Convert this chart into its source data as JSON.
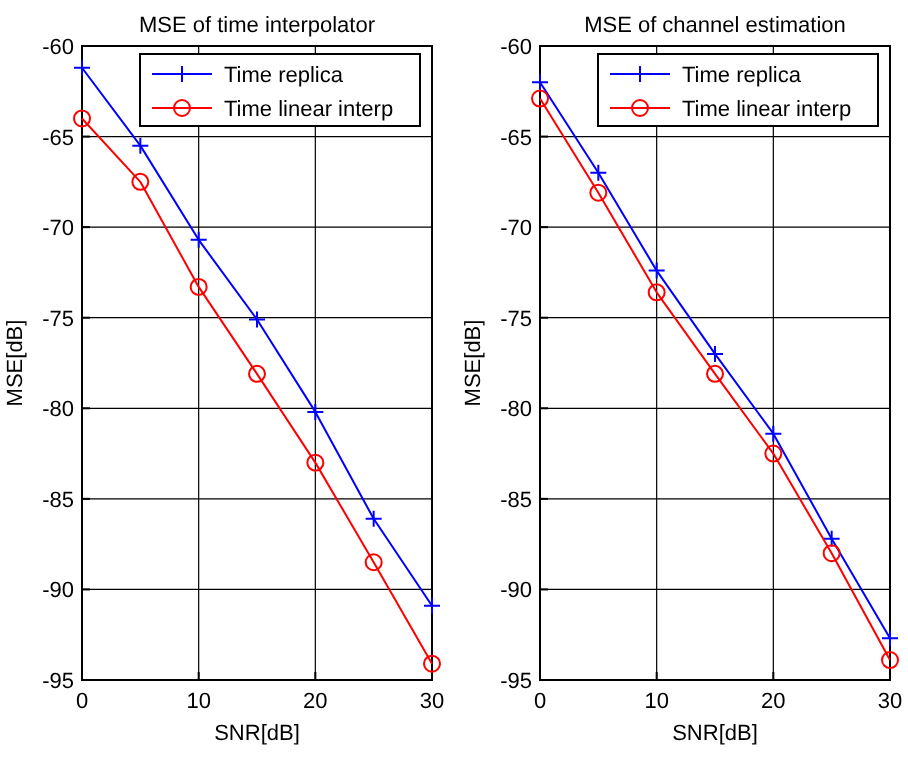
{
  "chart_data": [
    {
      "type": "line",
      "title": "MSE of time interpolator",
      "xlabel": "SNR[dB]",
      "ylabel": "MSE[dB]",
      "x": [
        0,
        5,
        10,
        15,
        20,
        25,
        30
      ],
      "xlim": [
        0,
        30
      ],
      "xticks": [
        0,
        10,
        20,
        30
      ],
      "ylim": [
        -95,
        -60
      ],
      "yticks": [
        -95,
        -90,
        -85,
        -80,
        -75,
        -70,
        -65,
        -60
      ],
      "grid": true,
      "legend": "top right",
      "series": [
        {
          "name": "Time replica",
          "color": "#0000ff",
          "marker": "cross",
          "values": [
            -61.2,
            -65.5,
            -70.7,
            -75.1,
            -80.2,
            -86.1,
            -90.9
          ]
        },
        {
          "name": "Time linear interp",
          "color": "#ff0000",
          "marker": "circle",
          "values": [
            -64,
            -67.5,
            -73.3,
            -78.1,
            -83,
            -88.5,
            -94.1
          ]
        }
      ]
    },
    {
      "type": "line",
      "title": "MSE of channel estimation",
      "xlabel": "SNR[dB]",
      "ylabel": "MSE[dB]",
      "x": [
        0,
        5,
        10,
        15,
        20,
        25,
        30
      ],
      "xlim": [
        0,
        30
      ],
      "xticks": [
        0,
        10,
        20,
        30
      ],
      "ylim": [
        -95,
        -60
      ],
      "yticks": [
        -95,
        -90,
        -85,
        -80,
        -75,
        -70,
        -65,
        -60
      ],
      "grid": true,
      "legend": "top right",
      "series": [
        {
          "name": "Time replica",
          "color": "#0000ff",
          "marker": "cross",
          "values": [
            -62,
            -67,
            -72.4,
            -77,
            -81.4,
            -87.2,
            -92.7
          ]
        },
        {
          "name": "Time linear interp",
          "color": "#ff0000",
          "marker": "circle",
          "values": [
            -62.9,
            -68.1,
            -73.6,
            -78.1,
            -82.5,
            -88,
            -93.9
          ]
        }
      ]
    }
  ]
}
